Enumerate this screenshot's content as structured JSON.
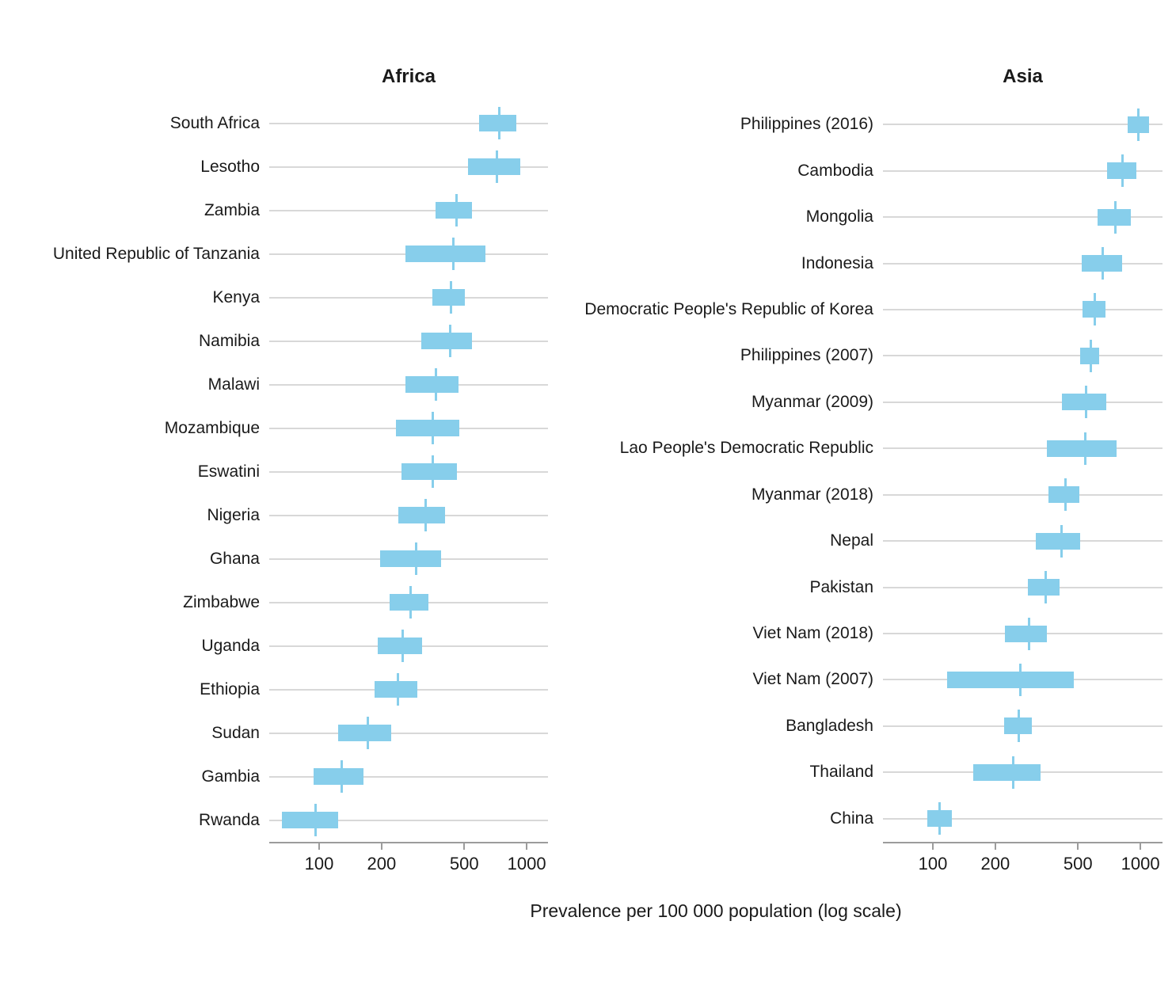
{
  "figure": {
    "xaxis_label": "Prevalence per 100 000 population (log scale)",
    "colors": {
      "bar": "#87CEEB",
      "gridline": "#D8D8D8",
      "axis": "#9C9C9C",
      "text": "#1A1A1A"
    }
  },
  "chart_data": [
    {
      "type": "bar",
      "subtype": "horizontal-crossbar-interval",
      "title": "Africa",
      "scale": "log10",
      "axis_range": [
        57.5,
        1266
      ],
      "xticks": [
        100,
        200,
        500,
        1000
      ],
      "xtick_labels": [
        "100",
        "200",
        "500",
        "1000"
      ],
      "xlabel": "Prevalence per 100 000 population (log scale)",
      "grid": "horizontal-only",
      "legend": "none",
      "rows": [
        {
          "label": "South Africa",
          "est": 740,
          "lo": 590,
          "hi": 890
        },
        {
          "label": "Lesotho",
          "est": 720,
          "lo": 520,
          "hi": 930
        },
        {
          "label": "Zambia",
          "est": 460,
          "lo": 365,
          "hi": 545
        },
        {
          "label": "United Republic of Tanzania",
          "est": 445,
          "lo": 260,
          "hi": 630
        },
        {
          "label": "Kenya",
          "est": 430,
          "lo": 350,
          "hi": 505
        },
        {
          "label": "Namibia",
          "est": 428,
          "lo": 310,
          "hi": 545
        },
        {
          "label": "Malawi",
          "est": 365,
          "lo": 260,
          "hi": 470
        },
        {
          "label": "Mozambique",
          "est": 354,
          "lo": 235,
          "hi": 475
        },
        {
          "label": "Eswatini",
          "est": 352,
          "lo": 250,
          "hi": 460
        },
        {
          "label": "Nigeria",
          "est": 325,
          "lo": 240,
          "hi": 405
        },
        {
          "label": "Ghana",
          "est": 292,
          "lo": 197,
          "hi": 386
        },
        {
          "label": "Zimbabwe",
          "est": 277,
          "lo": 219,
          "hi": 335
        },
        {
          "label": "Uganda",
          "est": 253,
          "lo": 192,
          "hi": 314
        },
        {
          "label": "Ethiopia",
          "est": 240,
          "lo": 185,
          "hi": 298
        },
        {
          "label": "Sudan",
          "est": 172,
          "lo": 123,
          "hi": 222
        },
        {
          "label": "Gambia",
          "est": 128,
          "lo": 94,
          "hi": 164
        },
        {
          "label": "Rwanda",
          "est": 96,
          "lo": 66,
          "hi": 124
        }
      ]
    },
    {
      "type": "bar",
      "subtype": "horizontal-crossbar-interval",
      "title": "Asia",
      "scale": "log10",
      "axis_range": [
        57.5,
        1277
      ],
      "xticks": [
        100,
        200,
        500,
        1000
      ],
      "xtick_labels": [
        "100",
        "200",
        "500",
        "1000"
      ],
      "xlabel": "Prevalence per 100 000 population (log scale)",
      "grid": "horizontal-only",
      "legend": "none",
      "rows": [
        {
          "label": "Philippines (2016)",
          "est": 980,
          "lo": 865,
          "hi": 1100
        },
        {
          "label": "Cambodia",
          "est": 817,
          "lo": 690,
          "hi": 955
        },
        {
          "label": "Mongolia",
          "est": 755,
          "lo": 620,
          "hi": 895
        },
        {
          "label": "Indonesia",
          "est": 660,
          "lo": 520,
          "hi": 815
        },
        {
          "label": "Democratic People's Republic of Korea",
          "est": 600,
          "lo": 528,
          "hi": 680
        },
        {
          "label": "Philippines (2007)",
          "est": 575,
          "lo": 514,
          "hi": 635
        },
        {
          "label": "Myanmar (2009)",
          "est": 545,
          "lo": 420,
          "hi": 685
        },
        {
          "label": "Lao People's Democratic Republic",
          "est": 540,
          "lo": 355,
          "hi": 765
        },
        {
          "label": "Myanmar (2018)",
          "est": 435,
          "lo": 360,
          "hi": 510
        },
        {
          "label": "Nepal",
          "est": 416,
          "lo": 313,
          "hi": 514
        },
        {
          "label": "Pakistan",
          "est": 350,
          "lo": 286,
          "hi": 407
        },
        {
          "label": "Viet Nam (2018)",
          "est": 290,
          "lo": 222,
          "hi": 354
        },
        {
          "label": "Viet Nam (2007)",
          "est": 265,
          "lo": 117,
          "hi": 476
        },
        {
          "label": "Bangladesh",
          "est": 260,
          "lo": 220,
          "hi": 301
        },
        {
          "label": "Thailand",
          "est": 243,
          "lo": 157,
          "hi": 330
        },
        {
          "label": "China",
          "est": 108,
          "lo": 94,
          "hi": 123
        }
      ]
    }
  ]
}
